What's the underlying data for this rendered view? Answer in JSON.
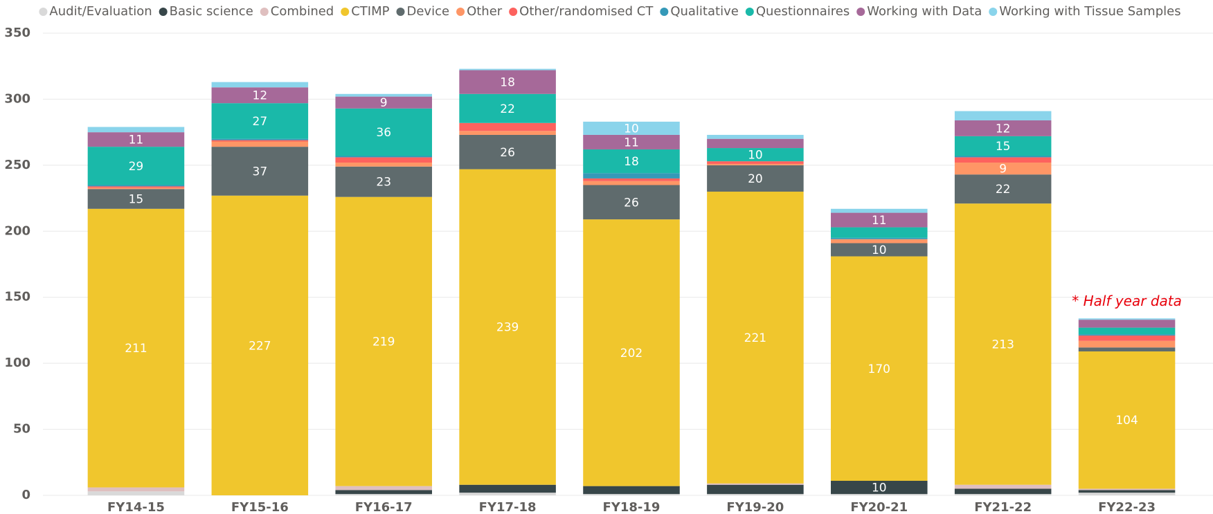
{
  "chart_data": {
    "type": "stacked_bar",
    "categories": [
      "FY14-15",
      "FY15-16",
      "FY16-17",
      "FY17-18",
      "FY18-19",
      "FY19-20",
      "FY20-21",
      "FY21-22",
      "FY22-23"
    ],
    "series": [
      {
        "name": "Audit/Evaluation",
        "color": "#d9d9d9",
        "values": [
          3,
          0,
          1,
          2,
          1,
          1,
          1,
          1,
          2
        ]
      },
      {
        "name": "Basic science",
        "color": "#374649",
        "values": [
          0,
          0,
          3,
          6,
          6,
          7,
          10,
          4,
          2
        ]
      },
      {
        "name": "Combined",
        "color": "#dfbfbf",
        "values": [
          3,
          0,
          3,
          0,
          0,
          1,
          0,
          3,
          1
        ]
      },
      {
        "name": "CTIMP",
        "color": "#f0c62d",
        "values": [
          211,
          227,
          219,
          239,
          202,
          221,
          170,
          213,
          104
        ]
      },
      {
        "name": "Device",
        "color": "#5f6b6d",
        "values": [
          15,
          37,
          23,
          26,
          26,
          20,
          10,
          22,
          3
        ]
      },
      {
        "name": "Other",
        "color": "#fe9666",
        "values": [
          1,
          4,
          3,
          3,
          3,
          1,
          3,
          9,
          5
        ]
      },
      {
        "name": "Other/randomised CT",
        "color": "#fd625e",
        "values": [
          1,
          1,
          4,
          6,
          2,
          2,
          0,
          4,
          4
        ]
      },
      {
        "name": "Qualitative",
        "color": "#3599b8",
        "values": [
          1,
          1,
          1,
          0,
          4,
          0,
          1,
          1,
          1
        ]
      },
      {
        "name": "Questionnaires",
        "color": "#1ab9a9",
        "values": [
          29,
          27,
          36,
          22,
          18,
          10,
          8,
          15,
          5
        ]
      },
      {
        "name": "Working with Data",
        "color": "#a66999",
        "values": [
          11,
          12,
          9,
          18,
          11,
          7,
          11,
          12,
          6
        ]
      },
      {
        "name": "Working with Tissue Samples",
        "color": "#8ad4eb",
        "values": [
          4,
          4,
          2,
          1,
          10,
          3,
          3,
          7,
          1
        ]
      }
    ],
    "annotation": "* Half year data",
    "ylim": [
      0,
      350
    ],
    "yticks": [
      0,
      50,
      100,
      150,
      200,
      250,
      300,
      350
    ],
    "grid": true,
    "legend": "top"
  }
}
